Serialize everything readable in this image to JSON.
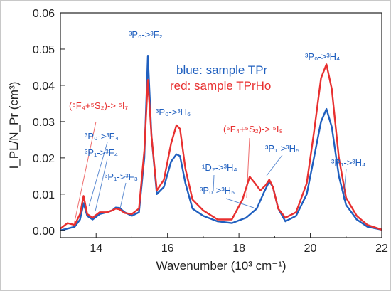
{
  "chart_data": {
    "type": "line",
    "xlabel": "Wavenumber (10³ cm⁻¹)",
    "ylabel": "I_PL/N_Pr (cm³)",
    "xlim": [
      13,
      22
    ],
    "ylim": [
      -0.002,
      0.06
    ],
    "x_ticks": [
      14,
      16,
      18,
      20,
      22
    ],
    "x_tick_labels": [
      "14",
      "16",
      "18",
      "20",
      "22"
    ],
    "y_ticks": [
      0.0,
      0.01,
      0.02,
      0.03,
      0.04,
      0.05,
      0.06
    ],
    "y_tick_labels": [
      "0.00",
      "0.01",
      "0.02",
      "0.03",
      "0.04",
      "0.05",
      "0.06"
    ],
    "grid": false,
    "legend_position": "top-center",
    "legend_lines": [
      {
        "text": "blue: sample TPr",
        "color": "#1f5fbf"
      },
      {
        "text": "red: sample TPrHo",
        "color": "#e83030"
      }
    ],
    "series": [
      {
        "color": "#1f5fbf",
        "points": [
          [
            13.0,
            0.0
          ],
          [
            13.2,
            0.0005
          ],
          [
            13.4,
            0.001
          ],
          [
            13.55,
            0.003
          ],
          [
            13.65,
            0.0075
          ],
          [
            13.75,
            0.004
          ],
          [
            13.9,
            0.003
          ],
          [
            14.1,
            0.0045
          ],
          [
            14.3,
            0.005
          ],
          [
            14.45,
            0.0055
          ],
          [
            14.55,
            0.0063
          ],
          [
            14.65,
            0.0062
          ],
          [
            14.8,
            0.005
          ],
          [
            15.0,
            0.004
          ],
          [
            15.2,
            0.005
          ],
          [
            15.35,
            0.02
          ],
          [
            15.45,
            0.048
          ],
          [
            15.55,
            0.026
          ],
          [
            15.7,
            0.01
          ],
          [
            15.9,
            0.012
          ],
          [
            16.1,
            0.019
          ],
          [
            16.25,
            0.021
          ],
          [
            16.35,
            0.0205
          ],
          [
            16.5,
            0.013
          ],
          [
            16.7,
            0.006
          ],
          [
            17.0,
            0.004
          ],
          [
            17.4,
            0.0025
          ],
          [
            17.8,
            0.002
          ],
          [
            18.2,
            0.0035
          ],
          [
            18.5,
            0.006
          ],
          [
            18.7,
            0.0105
          ],
          [
            18.85,
            0.0135
          ],
          [
            18.95,
            0.012
          ],
          [
            19.1,
            0.006
          ],
          [
            19.3,
            0.0025
          ],
          [
            19.6,
            0.004
          ],
          [
            19.9,
            0.01
          ],
          [
            20.1,
            0.02
          ],
          [
            20.3,
            0.03
          ],
          [
            20.45,
            0.0335
          ],
          [
            20.6,
            0.0285
          ],
          [
            20.8,
            0.015
          ],
          [
            21.0,
            0.007
          ],
          [
            21.3,
            0.003
          ],
          [
            21.6,
            0.001
          ],
          [
            22.0,
            0.0002
          ]
        ]
      },
      {
        "color": "#e83030",
        "points": [
          [
            13.0,
            0.0005
          ],
          [
            13.2,
            0.002
          ],
          [
            13.4,
            0.0015
          ],
          [
            13.55,
            0.0045
          ],
          [
            13.65,
            0.0095
          ],
          [
            13.75,
            0.0045
          ],
          [
            13.9,
            0.0035
          ],
          [
            14.1,
            0.005
          ],
          [
            14.3,
            0.005
          ],
          [
            14.45,
            0.0055
          ],
          [
            14.55,
            0.006
          ],
          [
            14.65,
            0.0058
          ],
          [
            14.8,
            0.0048
          ],
          [
            15.0,
            0.0045
          ],
          [
            15.2,
            0.006
          ],
          [
            15.35,
            0.022
          ],
          [
            15.45,
            0.0415
          ],
          [
            15.55,
            0.026
          ],
          [
            15.7,
            0.011
          ],
          [
            15.9,
            0.014
          ],
          [
            16.1,
            0.024
          ],
          [
            16.25,
            0.029
          ],
          [
            16.35,
            0.028
          ],
          [
            16.5,
            0.017
          ],
          [
            16.7,
            0.0085
          ],
          [
            17.0,
            0.0055
          ],
          [
            17.4,
            0.003
          ],
          [
            17.8,
            0.003
          ],
          [
            18.1,
            0.0085
          ],
          [
            18.3,
            0.0148
          ],
          [
            18.45,
            0.013
          ],
          [
            18.6,
            0.011
          ],
          [
            18.75,
            0.0125
          ],
          [
            18.85,
            0.014
          ],
          [
            18.95,
            0.012
          ],
          [
            19.1,
            0.006
          ],
          [
            19.3,
            0.0035
          ],
          [
            19.6,
            0.005
          ],
          [
            19.9,
            0.013
          ],
          [
            20.1,
            0.027
          ],
          [
            20.3,
            0.042
          ],
          [
            20.45,
            0.0458
          ],
          [
            20.6,
            0.039
          ],
          [
            20.8,
            0.02
          ],
          [
            21.0,
            0.009
          ],
          [
            21.3,
            0.004
          ],
          [
            21.6,
            0.0015
          ],
          [
            22.0,
            0.0002
          ]
        ]
      }
    ]
  },
  "annotations": [
    {
      "text": "³P₀->³F₂",
      "color": "#1f5fbf"
    },
    {
      "text": "³P₀->³H₆",
      "color": "#1f5fbf"
    },
    {
      "text": "³P₀->³H₄",
      "color": "#1f5fbf"
    },
    {
      "text": "(⁵F₄+⁵S₂)-> ⁵I₇",
      "color": "#e83030"
    },
    {
      "text": "³P₀->³F₄",
      "color": "#1f5fbf"
    },
    {
      "text": "³P₁->³F₄",
      "color": "#1f5fbf"
    },
    {
      "text": "³P₁->³F₃",
      "color": "#1f5fbf"
    },
    {
      "text": "¹D₂->³H₄",
      "color": "#1f5fbf"
    },
    {
      "text": "³P₀->³H₅",
      "color": "#1f5fbf"
    },
    {
      "text": "(⁵F₄+⁵S₂)-> ⁵I₈",
      "color": "#e83030"
    },
    {
      "text": "³P₁->³H₅",
      "color": "#1f5fbf"
    },
    {
      "text": "³P₁->³H₄",
      "color": "#1f5fbf"
    }
  ]
}
